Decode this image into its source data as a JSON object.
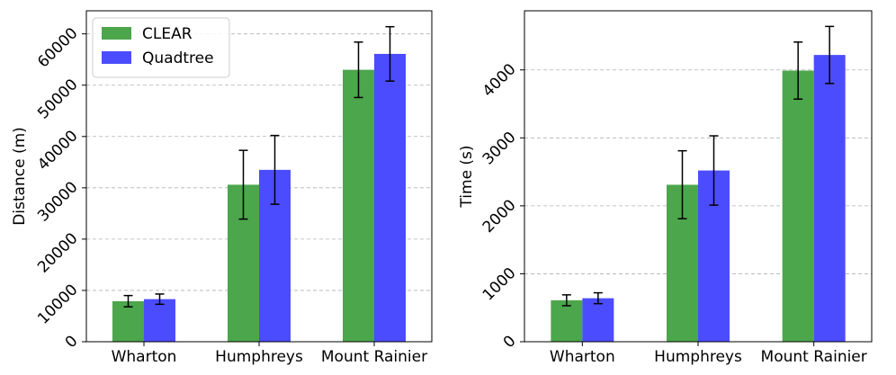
{
  "chart_data": [
    {
      "type": "bar",
      "title": "",
      "xlabel": "",
      "ylabel": "Distance (m)",
      "categories": [
        "Wharton",
        "Humphreys",
        "Mount Rainier"
      ],
      "ylim": [
        0,
        64500
      ],
      "yticks": [
        0,
        10000,
        20000,
        30000,
        40000,
        50000,
        60000
      ],
      "grid": true,
      "legend": "upper-left",
      "series": [
        {
          "name": "CLEAR",
          "color": "#4ca64c",
          "values": [
            7900,
            30600,
            53000
          ],
          "errors": [
            1100,
            6700,
            5400
          ]
        },
        {
          "name": "Quadtree",
          "color": "#4c4cff",
          "values": [
            8300,
            33500,
            56100
          ],
          "errors": [
            1000,
            6700,
            5300
          ]
        }
      ]
    },
    {
      "type": "bar",
      "title": "",
      "xlabel": "",
      "ylabel": "Time (s)",
      "categories": [
        "Wharton",
        "Humphreys",
        "Mount Rainier"
      ],
      "ylim": [
        0,
        4870
      ],
      "yticks": [
        0,
        1000,
        2000,
        3000,
        4000
      ],
      "grid": true,
      "legend": "",
      "series": [
        {
          "name": "CLEAR",
          "color": "#4ca64c",
          "values": [
            610,
            2310,
            3990
          ],
          "errors": [
            80,
            500,
            420
          ]
        },
        {
          "name": "Quadtree",
          "color": "#4c4cff",
          "values": [
            640,
            2520,
            4220
          ],
          "errors": [
            80,
            510,
            420
          ]
        }
      ]
    }
  ]
}
